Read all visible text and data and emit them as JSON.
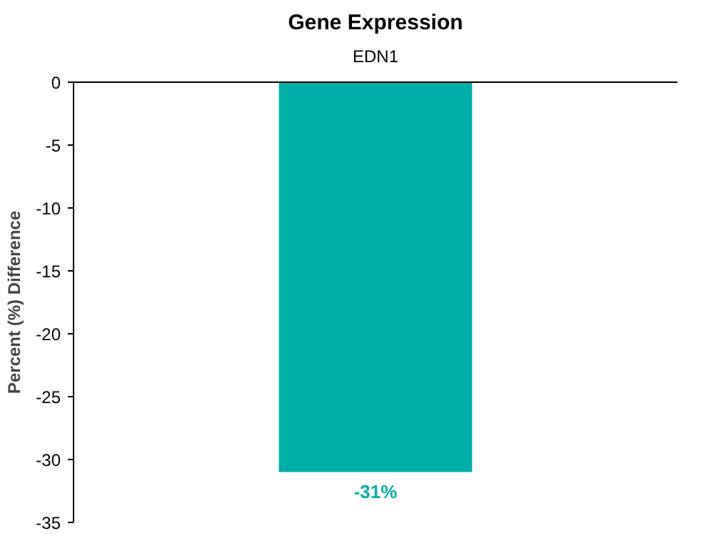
{
  "chart_data": {
    "type": "bar",
    "title": "Gene Expression",
    "ylabel": "Percent (%) Difference",
    "categories": [
      "EDN1"
    ],
    "values": [
      -31
    ],
    "color": "#00b0a8",
    "value_labels": [
      "-31%"
    ],
    "ylim": [
      -35,
      0
    ],
    "yticks": [
      0,
      -5,
      -10,
      -15,
      -20,
      -25,
      -30,
      -35
    ],
    "grid": false
  }
}
